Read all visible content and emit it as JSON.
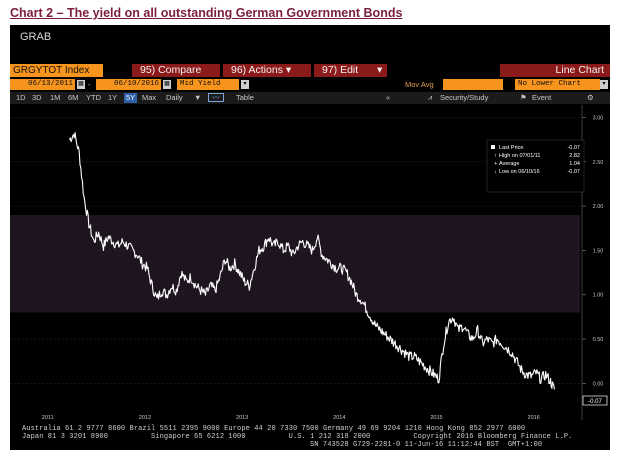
{
  "caption": "Chart 2 – The yield on all outstanding German Government Bonds",
  "window_title": "GRAB",
  "toolbar": {
    "ticker": "GRGYTOT Index",
    "compare": "95) Compare",
    "actions": "96) Actions ▾",
    "edit": "97) Edit",
    "line_chart": "Line Chart"
  },
  "params": {
    "start_date": "06/13/2011",
    "end_date": "06/10/2016",
    "field": "Mid Yield",
    "mov_avg_label": "Mov Avg",
    "lower_chart": "No Lower Chart"
  },
  "periods": [
    "1D",
    "3D",
    "1M",
    "6M",
    "YTD",
    "1Y",
    "5Y",
    "Max"
  ],
  "active_period": "5Y",
  "frequency": "Daily",
  "table_label": "Table",
  "security_study": "Security/Study",
  "event_label": "Event",
  "legend": {
    "last_price_label": "Last Price",
    "last_price": "-0.07",
    "high_label": "High on 07/01/11",
    "high": "2.82",
    "average_label": "Average",
    "average": "1.04",
    "low_label": "Low on 06/10/16",
    "low": "-0.07"
  },
  "last_value_tag": "-0.07",
  "colors": {
    "orange": "#f7941d",
    "maroon": "#8b1a1a",
    "active_blue": "#2f5fa8",
    "band": "#1e1420"
  },
  "footer": {
    "line1": "Australia 61 2 9777 8600 Brazil 5511 2395 9000 Europe 44 20 7330 7500 Germany 49 69 9204 1210 Hong Kong 852 2977 6000",
    "line2": "Japan 81 3 3201 8900          Singapore 65 6212 1000          U.S. 1 212 318 2000          Copyright 2016 Bloomberg Finance L.P.",
    "line3": "SN 743528 G729-2281-0 11-Jun-16 11:12:44 BST  GMT+1:00"
  },
  "chart_data": {
    "type": "line",
    "title": "",
    "series": [
      {
        "name": "GRGYTOT Index Mid Yield",
        "x": [
          2011.45,
          2011.5,
          2011.55,
          2011.6,
          2011.65,
          2011.7,
          2011.75,
          2011.8,
          2011.85,
          2011.9,
          2011.95,
          2012.0,
          2012.05,
          2012.1,
          2012.15,
          2012.2,
          2012.25,
          2012.3,
          2012.35,
          2012.4,
          2012.45,
          2012.5,
          2012.55,
          2012.6,
          2012.65,
          2012.7,
          2012.75,
          2012.8,
          2012.85,
          2012.9,
          2012.95,
          2013.0,
          2013.05,
          2013.1,
          2013.15,
          2013.2,
          2013.25,
          2013.3,
          2013.35,
          2013.4,
          2013.45,
          2013.5,
          2013.55,
          2013.6,
          2013.65,
          2013.7,
          2013.75,
          2013.8,
          2013.85,
          2013.9,
          2013.95,
          2014.0,
          2014.05,
          2014.1,
          2014.15,
          2014.2,
          2014.25,
          2014.3,
          2014.35,
          2014.4,
          2014.45,
          2014.5,
          2014.55,
          2014.6,
          2014.65,
          2014.7,
          2014.75,
          2014.8,
          2014.85,
          2014.9,
          2014.95,
          2015.0,
          2015.05,
          2015.1,
          2015.15,
          2015.2,
          2015.25,
          2015.3,
          2015.35,
          2015.4,
          2015.45,
          2015.5,
          2015.55,
          2015.6,
          2015.65,
          2015.7,
          2015.75,
          2015.8,
          2015.85,
          2015.9,
          2015.95,
          2016.0,
          2016.05,
          2016.1,
          2016.15,
          2016.2,
          2016.25,
          2016.3,
          2016.35,
          2016.4,
          2016.44
        ],
        "values": [
          2.75,
          2.82,
          2.6,
          2.1,
          1.8,
          1.6,
          1.7,
          1.55,
          1.65,
          1.6,
          1.55,
          1.6,
          1.55,
          1.5,
          1.45,
          1.35,
          1.3,
          1.1,
          0.95,
          1.05,
          1.0,
          1.1,
          1.05,
          1.25,
          1.15,
          1.2,
          1.1,
          1.05,
          1.0,
          1.1,
          1.05,
          1.2,
          1.4,
          1.3,
          1.35,
          1.25,
          1.15,
          1.1,
          1.3,
          1.5,
          1.55,
          1.65,
          1.55,
          1.6,
          1.5,
          1.55,
          1.45,
          1.55,
          1.6,
          1.55,
          1.5,
          1.65,
          1.45,
          1.4,
          1.35,
          1.3,
          1.3,
          1.25,
          1.15,
          1.0,
          0.95,
          0.85,
          0.75,
          0.65,
          0.6,
          0.55,
          0.5,
          0.45,
          0.4,
          0.35,
          0.3,
          0.3,
          0.25,
          0.2,
          0.15,
          0.1,
          0.05,
          0.45,
          0.7,
          0.75,
          0.6,
          0.65,
          0.55,
          0.5,
          0.6,
          0.45,
          0.5,
          0.45,
          0.5,
          0.45,
          0.4,
          0.35,
          0.25,
          0.15,
          0.1,
          0.08,
          0.12,
          0.05,
          0.1,
          0.02,
          -0.07
        ]
      }
    ],
    "xlim": [
      2010.9,
      2016.6
    ],
    "ylim": [
      -0.3,
      3.05
    ],
    "x_ticks": [
      "2011",
      "2012",
      "2013",
      "2014",
      "2015",
      "2016"
    ],
    "y_ticks": [
      "3.00",
      "2.50",
      "2.00",
      "1.50",
      "1.00",
      "0.50",
      "0.00"
    ],
    "y_tick_values": [
      3.0,
      2.5,
      2.0,
      1.5,
      1.0,
      0.5,
      0.0
    ],
    "x_tick_values": [
      2011.0,
      2012.0,
      2013.0,
      2014.0,
      2015.0,
      2016.0
    ],
    "band_range": [
      0.8,
      1.9
    ]
  }
}
